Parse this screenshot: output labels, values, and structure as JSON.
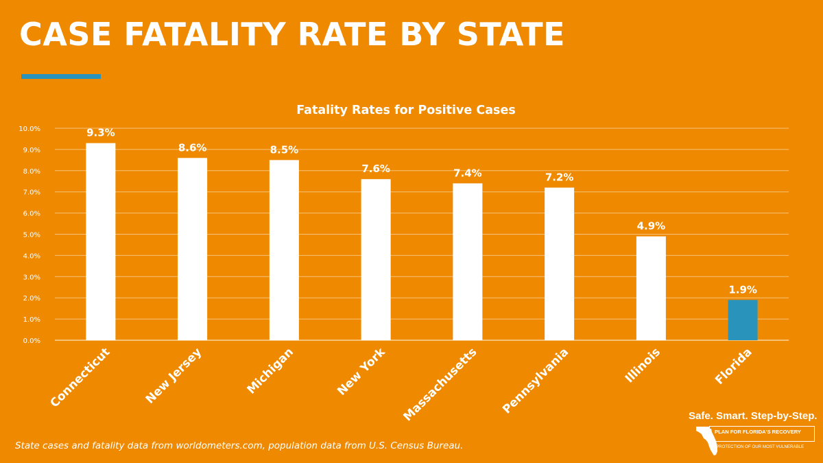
{
  "page": {
    "title": "CASE FATALITY RATE BY STATE",
    "footnote": "State cases and fatality data from worldometers.com, population data from U.S. Census Bureau.",
    "logo": {
      "tagline": "Safe. Smart. Step-by-Step.",
      "line1": "PLAN FOR FLORIDA'S RECOVERY",
      "line2": "& PROTECTION OF OUR MOST VULNERABLE"
    }
  },
  "colors": {
    "background": "#EF8A00",
    "accent": "#2A93BC",
    "bar": "#FFFFFF",
    "highlight_bar": "#2A93BC",
    "text": "#FFFFFF",
    "grid": "#F7C27A"
  },
  "chart_data": {
    "type": "bar",
    "title": "Fatality Rates for Positive Cases",
    "xlabel": "",
    "ylabel": "",
    "categories": [
      "Connecticut",
      "New Jersey",
      "Michigan",
      "New York",
      "Massachusetts",
      "Pennsylvania",
      "Illinois",
      "Florida"
    ],
    "values": [
      9.3,
      8.6,
      8.5,
      7.6,
      7.4,
      7.2,
      4.9,
      1.9
    ],
    "data_labels": [
      "9.3%",
      "8.6%",
      "8.5%",
      "7.6%",
      "7.4%",
      "7.2%",
      "4.9%",
      "1.9%"
    ],
    "highlight": [
      "Florida"
    ],
    "ylim": [
      0,
      10
    ],
    "yticks": [
      0,
      1,
      2,
      3,
      4,
      5,
      6,
      7,
      8,
      9,
      10
    ],
    "ytick_labels": [
      "0.0%",
      "1.0%",
      "2.0%",
      "3.0%",
      "4.0%",
      "5.0%",
      "6.0%",
      "7.0%",
      "8.0%",
      "9.0%",
      "10.0%"
    ],
    "grid": true,
    "legend": "none"
  }
}
